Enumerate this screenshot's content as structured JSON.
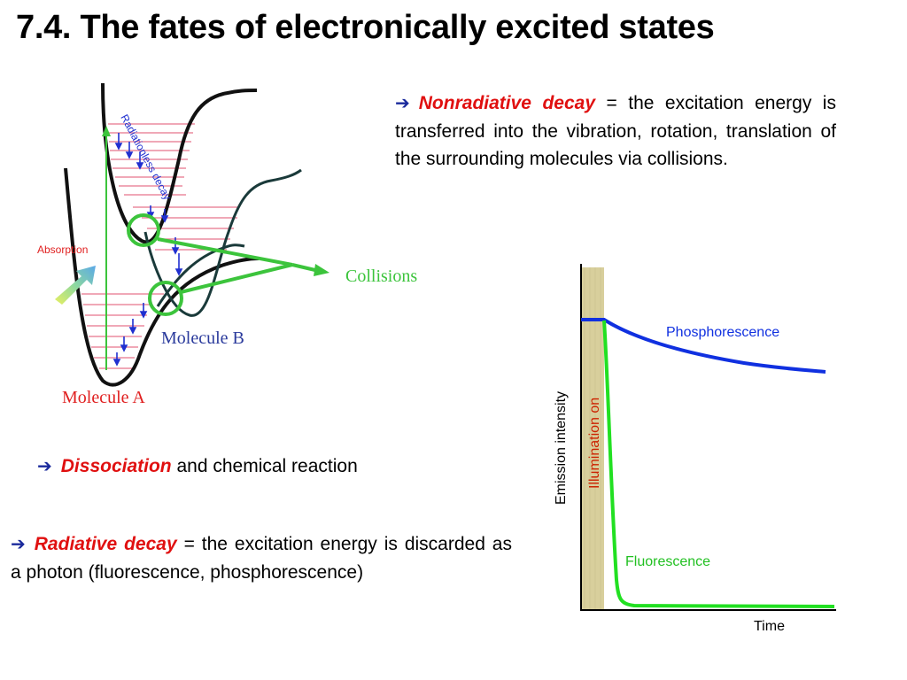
{
  "slide": {
    "title": "7.4. The fates of electronically excited states"
  },
  "paragraphs": {
    "nonradiative": {
      "arrow": "➔",
      "term": "Nonradiative decay",
      "text": " = the excitation energy is transferred into the vibration, rotation, translation of the surrounding molecules via collisions."
    },
    "dissociation": {
      "arrow": "➔",
      "term": "Dissociation",
      "text": " and chemical reaction"
    },
    "radiative": {
      "arrow": "➔",
      "term": "Radiative decay",
      "text": " = the excitation energy is discarded as a photon (fluorescence, phosphorescence)"
    }
  },
  "energy_diagram": {
    "absorption_label": "Absorption",
    "radiationless_label": "Radiationless decay",
    "collisions_label": "Collisions",
    "molecule_a_label": "Molecule A",
    "molecule_b_label": "Molecule B",
    "colors": {
      "levels": "#e8738c",
      "absorption": "#e02020",
      "molecule_a": "#e02020",
      "molecule_b": "#2a3a9c",
      "collisions": "#3cc43c",
      "arrows": "#2030d0"
    }
  },
  "emission_chart": {
    "ylabel": "Emission intensity",
    "xlabel": "Time",
    "illumination_label": "Illumination on",
    "phosphorescence_label": "Phosphorescence",
    "fluorescence_label": "Fluorescence",
    "colors": {
      "phosphorescence": "#1030e0",
      "fluorescence": "#22e022",
      "illumination": "#cc2200",
      "illumination_band": "#d8cf9c"
    }
  }
}
